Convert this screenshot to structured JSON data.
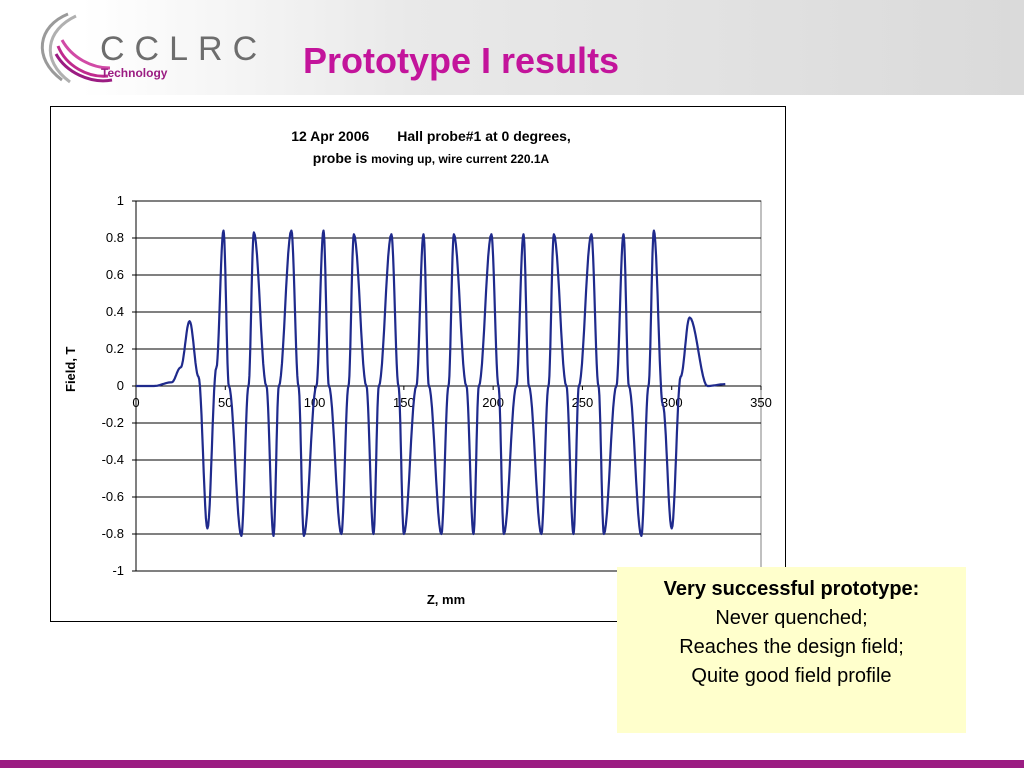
{
  "header": {
    "logo_text": "CCLRC",
    "logo_subtitle": "Technology",
    "title": "Prototype I results"
  },
  "colors": {
    "title": "#c3149b",
    "brand": "#9b1c82",
    "series": "#1f2a8c",
    "note_bg": "#ffffcc"
  },
  "chart_data": {
    "type": "line",
    "title_date": "12 Apr 2006",
    "title_main": "Hall probe#1 at 0 degrees,",
    "title_line2_bold": "probe is",
    "title_line2_rest": "moving up, wire current 220.1A",
    "xlabel": "Z, mm",
    "ylabel": "Field, T",
    "xlim": [
      0,
      350
    ],
    "ylim": [
      -1,
      1
    ],
    "xticks": [
      "0",
      "50",
      "100",
      "150",
      "200",
      "250",
      "300",
      "350"
    ],
    "yticks": [
      "1",
      "0.8",
      "0.6",
      "0.4",
      "0.2",
      "0",
      "-0.2",
      "-0.4",
      "-0.6",
      "-0.8",
      "-1"
    ],
    "grid": "horizontal",
    "legend": "none",
    "series": [
      {
        "x": [
          0,
          10,
          20,
          25,
          30,
          35,
          40,
          45,
          49,
          52,
          59,
          63,
          66,
          73,
          77,
          80,
          87,
          91,
          94,
          101,
          105,
          108,
          115,
          119,
          122,
          129,
          133,
          136,
          143,
          147,
          150,
          157,
          161,
          164,
          171,
          175,
          178,
          185,
          189,
          192,
          199,
          203,
          206,
          213,
          217,
          220,
          227,
          231,
          234,
          241,
          245,
          248,
          255,
          259,
          262,
          269,
          273,
          276,
          283,
          287,
          290,
          295,
          300,
          305,
          310,
          320,
          330
        ],
        "y": [
          0,
          0,
          0.02,
          0.1,
          0.35,
          0.05,
          -0.77,
          0.1,
          0.84,
          0,
          -0.81,
          0,
          0.83,
          0,
          -0.81,
          0,
          0.84,
          0,
          -0.81,
          0,
          0.84,
          0,
          -0.8,
          0,
          0.82,
          0,
          -0.8,
          0,
          0.82,
          0,
          -0.8,
          0,
          0.82,
          0,
          -0.8,
          0,
          0.82,
          0,
          -0.8,
          0,
          0.82,
          0,
          -0.8,
          0,
          0.82,
          0,
          -0.8,
          0,
          0.82,
          0,
          -0.8,
          0,
          0.82,
          0,
          -0.8,
          0,
          0.82,
          0,
          -0.81,
          0,
          0.84,
          -0.1,
          -0.77,
          0.05,
          0.37,
          0,
          0.01
        ]
      }
    ]
  },
  "note": {
    "heading": "Very successful prototype:",
    "line1": "Never quenched;",
    "line2": "Reaches the design field;",
    "line3": "Quite good field profile"
  }
}
